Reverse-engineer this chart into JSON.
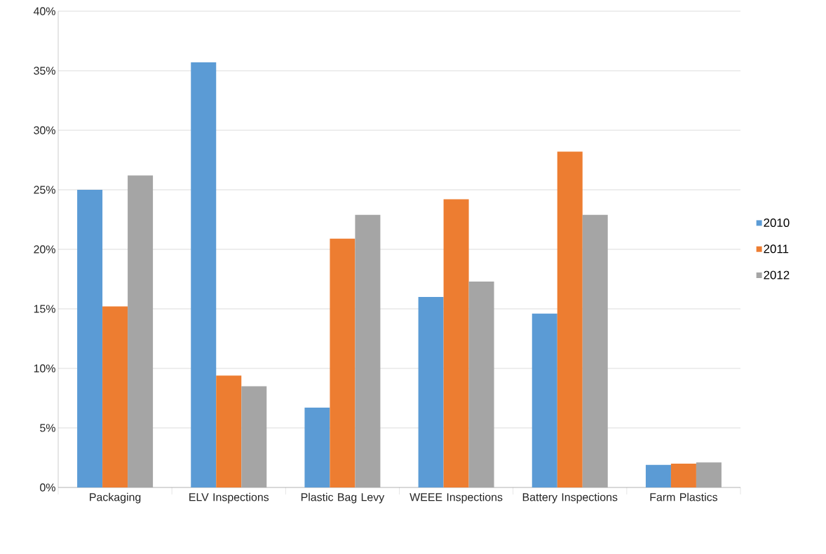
{
  "chart_data": {
    "type": "bar",
    "categories": [
      "Packaging",
      "ELV Inspections",
      "Plastic Bag Levy",
      "WEEE Inspections",
      "Battery Inspections",
      "Farm Plastics"
    ],
    "series": [
      {
        "name": "2010",
        "color": "#5b9bd5",
        "values": [
          25.0,
          35.7,
          6.7,
          16.0,
          14.6,
          1.9
        ]
      },
      {
        "name": "2011",
        "color": "#ed7d31",
        "values": [
          15.2,
          9.4,
          20.9,
          24.2,
          28.2,
          2.0
        ]
      },
      {
        "name": "2012",
        "color": "#a5a5a5",
        "values": [
          26.2,
          8.5,
          22.9,
          17.3,
          22.9,
          2.1
        ]
      }
    ],
    "ylim": [
      0,
      40
    ],
    "yticks": [
      {
        "value": 0,
        "label": "0%"
      },
      {
        "value": 5,
        "label": "5%"
      },
      {
        "value": 10,
        "label": "10%"
      },
      {
        "value": 15,
        "label": "15%"
      },
      {
        "value": 20,
        "label": "20%"
      },
      {
        "value": 25,
        "label": "25%"
      },
      {
        "value": 30,
        "label": "30%"
      },
      {
        "value": 35,
        "label": "35%"
      },
      {
        "value": 40,
        "label": "40%"
      }
    ],
    "grid": "y",
    "legend": "right"
  }
}
